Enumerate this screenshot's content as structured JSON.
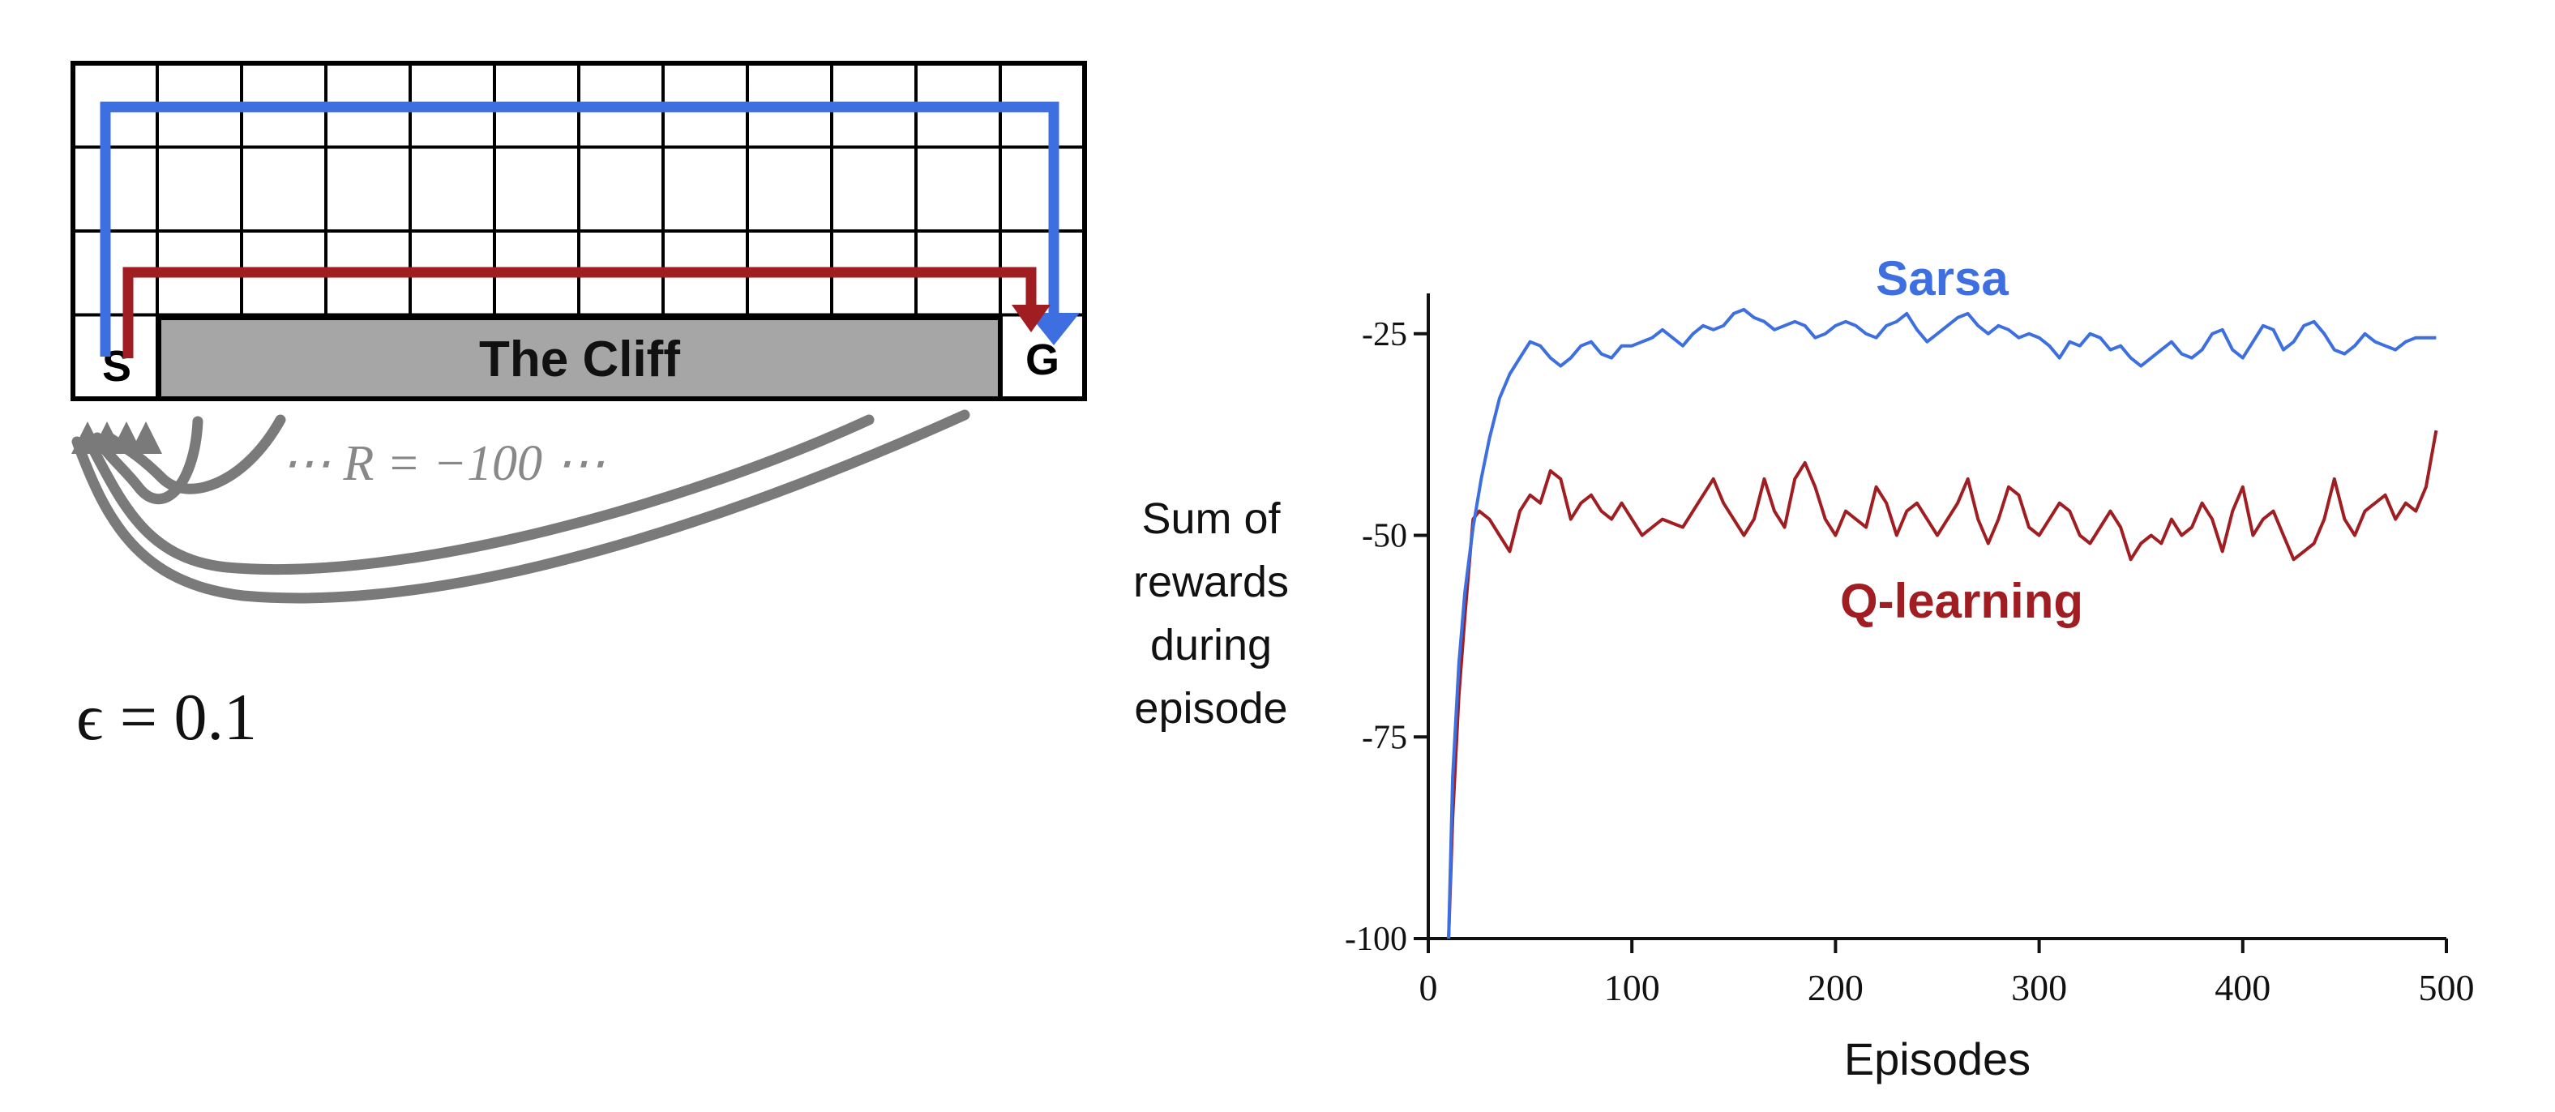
{
  "gridworld": {
    "start_label": "S",
    "goal_label": "G",
    "cliff_label": "The Cliff",
    "reward_label": "⋯ R = −100 ⋯",
    "epsilon_label": "ϵ = 0.1",
    "grid": {
      "columns": 12,
      "rows": 4
    },
    "colors": {
      "safe_path": "#3d6fe0",
      "optimal_path": "#a01e22",
      "cliff": "#a6a6a6",
      "fall_arrows": "#7a7a7a"
    }
  },
  "chart_data": {
    "type": "line",
    "xlabel": "Episodes",
    "ylabel": "Sum of rewards during episode",
    "ylabel_lines": [
      "Sum of",
      "rewards",
      "during",
      "episode"
    ],
    "xlim": [
      0,
      500
    ],
    "ylim": [
      -100,
      -20
    ],
    "xticks": [
      0,
      100,
      200,
      300,
      400,
      500
    ],
    "yticks": [
      -100,
      -75,
      -50,
      -25
    ],
    "grid": false,
    "series": [
      {
        "name": "Sarsa",
        "color": "#3d6fe0",
        "x": [
          10,
          12,
          15,
          18,
          22,
          26,
          30,
          35,
          40,
          45,
          50,
          55,
          60,
          65,
          70,
          75,
          80,
          85,
          90,
          95,
          100,
          105,
          110,
          115,
          120,
          125,
          130,
          135,
          140,
          145,
          150,
          155,
          160,
          165,
          170,
          175,
          180,
          185,
          190,
          195,
          200,
          205,
          210,
          215,
          220,
          225,
          230,
          235,
          240,
          245,
          250,
          255,
          260,
          265,
          270,
          275,
          280,
          285,
          290,
          295,
          300,
          305,
          310,
          315,
          320,
          325,
          330,
          335,
          340,
          345,
          350,
          355,
          360,
          365,
          370,
          375,
          380,
          385,
          390,
          395,
          400,
          405,
          410,
          415,
          420,
          425,
          430,
          435,
          440,
          445,
          450,
          455,
          460,
          465,
          470,
          475,
          480,
          485,
          490,
          495
        ],
        "values": [
          -100,
          -80,
          -66,
          -57,
          -49,
          -43,
          -38,
          -33,
          -30,
          -28,
          -26,
          -26.5,
          -28,
          -29,
          -28,
          -26.5,
          -26,
          -27.5,
          -28,
          -26.5,
          -26.5,
          -26,
          -25.5,
          -24.5,
          -25.5,
          -26.5,
          -25,
          -24,
          -24.5,
          -24,
          -22.5,
          -22,
          -23,
          -23.5,
          -24.5,
          -24,
          -23.5,
          -24,
          -25.5,
          -25,
          -24,
          -23.5,
          -24,
          -25,
          -25.5,
          -24,
          -23.5,
          -22.5,
          -24.5,
          -26,
          -25,
          -24,
          -23,
          -22.5,
          -24,
          -25,
          -24,
          -24.5,
          -25.5,
          -25,
          -25.5,
          -26.5,
          -28,
          -26,
          -26.5,
          -25,
          -25.5,
          -27,
          -26.5,
          -28,
          -29,
          -28,
          -27,
          -26,
          -27.5,
          -28,
          -27,
          -25,
          -24.5,
          -27,
          -28,
          -26,
          -24,
          -24.5,
          -27,
          -26,
          -24,
          -23.5,
          -25,
          -27,
          -27.5,
          -26.5,
          -25,
          -26,
          -26.5,
          -27,
          -26,
          -25.5,
          -25.5,
          -25.5
        ]
      },
      {
        "name": "Q-learning",
        "color": "#a01e22",
        "x": [
          10,
          12,
          15,
          18,
          20,
          22,
          25,
          30,
          35,
          40,
          45,
          50,
          55,
          60,
          65,
          70,
          75,
          80,
          85,
          90,
          95,
          100,
          105,
          110,
          115,
          120,
          125,
          130,
          135,
          140,
          145,
          150,
          155,
          160,
          165,
          170,
          175,
          180,
          185,
          190,
          195,
          200,
          205,
          210,
          215,
          220,
          225,
          230,
          235,
          240,
          245,
          250,
          255,
          260,
          265,
          270,
          275,
          280,
          285,
          290,
          295,
          300,
          305,
          310,
          315,
          320,
          325,
          330,
          335,
          340,
          345,
          350,
          355,
          360,
          365,
          370,
          375,
          380,
          385,
          390,
          395,
          400,
          405,
          410,
          415,
          420,
          425,
          430,
          435,
          440,
          445,
          450,
          455,
          460,
          465,
          470,
          475,
          480,
          485,
          490,
          495
        ],
        "values": [
          -100,
          -85,
          -70,
          -60,
          -54,
          -48,
          -47,
          -48,
          -50,
          -52,
          -47,
          -45,
          -46,
          -42,
          -43,
          -48,
          -46,
          -45,
          -47,
          -48,
          -46,
          -48,
          -50,
          -49,
          -48,
          -48.5,
          -49,
          -47,
          -45,
          -43,
          -46,
          -48,
          -50,
          -48,
          -43,
          -47,
          -49,
          -43,
          -41,
          -44,
          -48,
          -50,
          -47,
          -48,
          -49,
          -44,
          -46,
          -50,
          -47,
          -46,
          -48,
          -50,
          -48,
          -46,
          -43,
          -48,
          -51,
          -48,
          -44,
          -45,
          -49,
          -50,
          -48,
          -46,
          -47,
          -50,
          -51,
          -49,
          -47,
          -49,
          -53,
          -51,
          -50,
          -51,
          -48,
          -50,
          -49,
          -46,
          -48,
          -52,
          -47,
          -44,
          -50,
          -48,
          -47,
          -50,
          -53,
          -52,
          -51,
          -48,
          -43,
          -48,
          -50,
          -47,
          -46,
          -45,
          -48,
          -46,
          -47,
          -44,
          -37
        ]
      }
    ]
  }
}
